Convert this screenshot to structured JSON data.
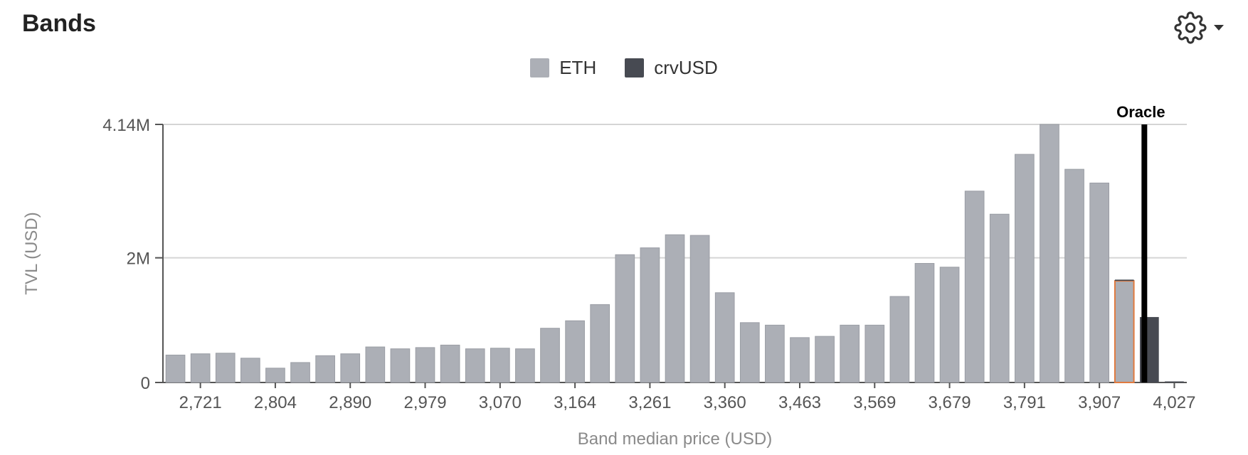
{
  "header": {
    "title": "Bands"
  },
  "settings": {
    "icon": "gear-icon",
    "dropdown_icon": "caret-down-icon"
  },
  "colors": {
    "eth": "#acafb6",
    "crvusd": "#474a52",
    "oracle": "#000000",
    "highlight": "#e07a3f",
    "grid": "#d5d5d5",
    "axis": "#555555",
    "muted": "#8a8a8a"
  },
  "chart_data": {
    "type": "bar",
    "stacked": true,
    "legend": {
      "position": "top-center",
      "items": [
        "ETH",
        "crvUSD"
      ]
    },
    "xlabel": "Band median price (USD)",
    "ylabel": "TVL (USD)",
    "ylim": [
      0,
      4140000
    ],
    "yticks": [
      {
        "value": 0,
        "label": "0"
      },
      {
        "value": 2000000,
        "label": "2M"
      },
      {
        "value": 4140000,
        "label": "4.14M"
      }
    ],
    "xtick_labels": [
      "2,721",
      "2,804",
      "2,890",
      "2,979",
      "3,070",
      "3,164",
      "3,261",
      "3,360",
      "3,463",
      "3,569",
      "3,679",
      "3,791",
      "3,907",
      "4,027"
    ],
    "xtick_band_index": [
      1,
      4,
      7,
      10,
      13,
      16,
      19,
      22,
      25,
      28,
      31,
      34,
      37,
      40
    ],
    "band_count": 41,
    "series": [
      {
        "name": "ETH",
        "values": [
          0.44,
          0.46,
          0.47,
          0.39,
          0.23,
          0.32,
          0.43,
          0.46,
          0.57,
          0.54,
          0.56,
          0.6,
          0.54,
          0.55,
          0.54,
          0.87,
          0.99,
          1.25,
          2.05,
          2.16,
          2.37,
          2.36,
          1.44,
          0.96,
          0.92,
          0.72,
          0.74,
          0.92,
          0.92,
          1.38,
          1.91,
          1.85,
          3.07,
          2.7,
          3.66,
          4.14,
          3.42,
          3.2,
          1.63,
          0,
          0
        ]
      },
      {
        "name": "crvUSD",
        "values": [
          0,
          0,
          0,
          0,
          0,
          0,
          0,
          0,
          0,
          0,
          0,
          0,
          0,
          0,
          0,
          0,
          0,
          0,
          0,
          0,
          0,
          0,
          0,
          0,
          0,
          0,
          0,
          0,
          0,
          0,
          0,
          0,
          0,
          0,
          0,
          0,
          0,
          0,
          0.02,
          1.05,
          0.01
        ]
      }
    ],
    "value_unit_multiplier": 1000000,
    "highlighted_band_index": 38,
    "oracle": {
      "label": "Oracle",
      "band_position": 39.3
    },
    "grid": true
  }
}
